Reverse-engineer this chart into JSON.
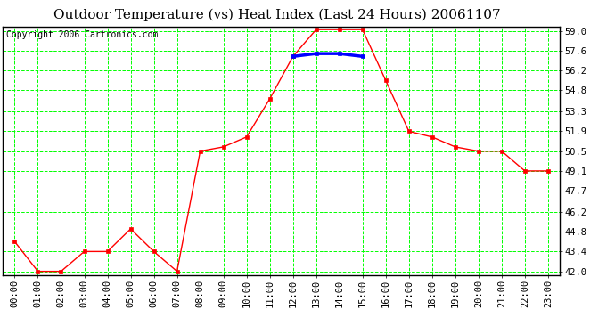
{
  "title": "Outdoor Temperature (vs) Heat Index (Last 24 Hours) 20061107",
  "copyright": "Copyright 2006 Cartronics.com",
  "hours": [
    "00:00",
    "01:00",
    "02:00",
    "03:00",
    "04:00",
    "05:00",
    "06:00",
    "07:00",
    "08:00",
    "09:00",
    "10:00",
    "11:00",
    "12:00",
    "13:00",
    "14:00",
    "15:00",
    "16:00",
    "17:00",
    "18:00",
    "19:00",
    "20:00",
    "21:00",
    "22:00",
    "23:00"
  ],
  "temp_values": [
    44.1,
    42.0,
    42.0,
    43.4,
    43.4,
    45.0,
    43.4,
    42.0,
    50.5,
    50.8,
    51.5,
    54.2,
    57.2,
    59.1,
    59.1,
    59.1,
    55.5,
    51.9,
    51.5,
    50.8,
    50.5,
    50.5,
    49.1,
    49.1
  ],
  "heat_values": [
    null,
    null,
    null,
    null,
    null,
    null,
    null,
    null,
    null,
    null,
    null,
    null,
    57.2,
    57.4,
    57.4,
    57.2,
    null,
    null,
    null,
    null,
    null,
    null,
    null,
    null
  ],
  "temp_color": "#FF0000",
  "heat_color": "#0000FF",
  "grid_color": "#00FF00",
  "bg_color": "#FFFFFF",
  "title_color": "#000000",
  "copyright_color": "#000000",
  "ylim_min": 42.0,
  "ylim_max": 59.0,
  "yticks": [
    42.0,
    43.4,
    44.8,
    46.2,
    47.7,
    49.1,
    50.5,
    51.9,
    53.3,
    54.8,
    56.2,
    57.6,
    59.0
  ],
  "title_fontsize": 11,
  "copyright_fontsize": 7,
  "tick_fontsize": 7.5
}
